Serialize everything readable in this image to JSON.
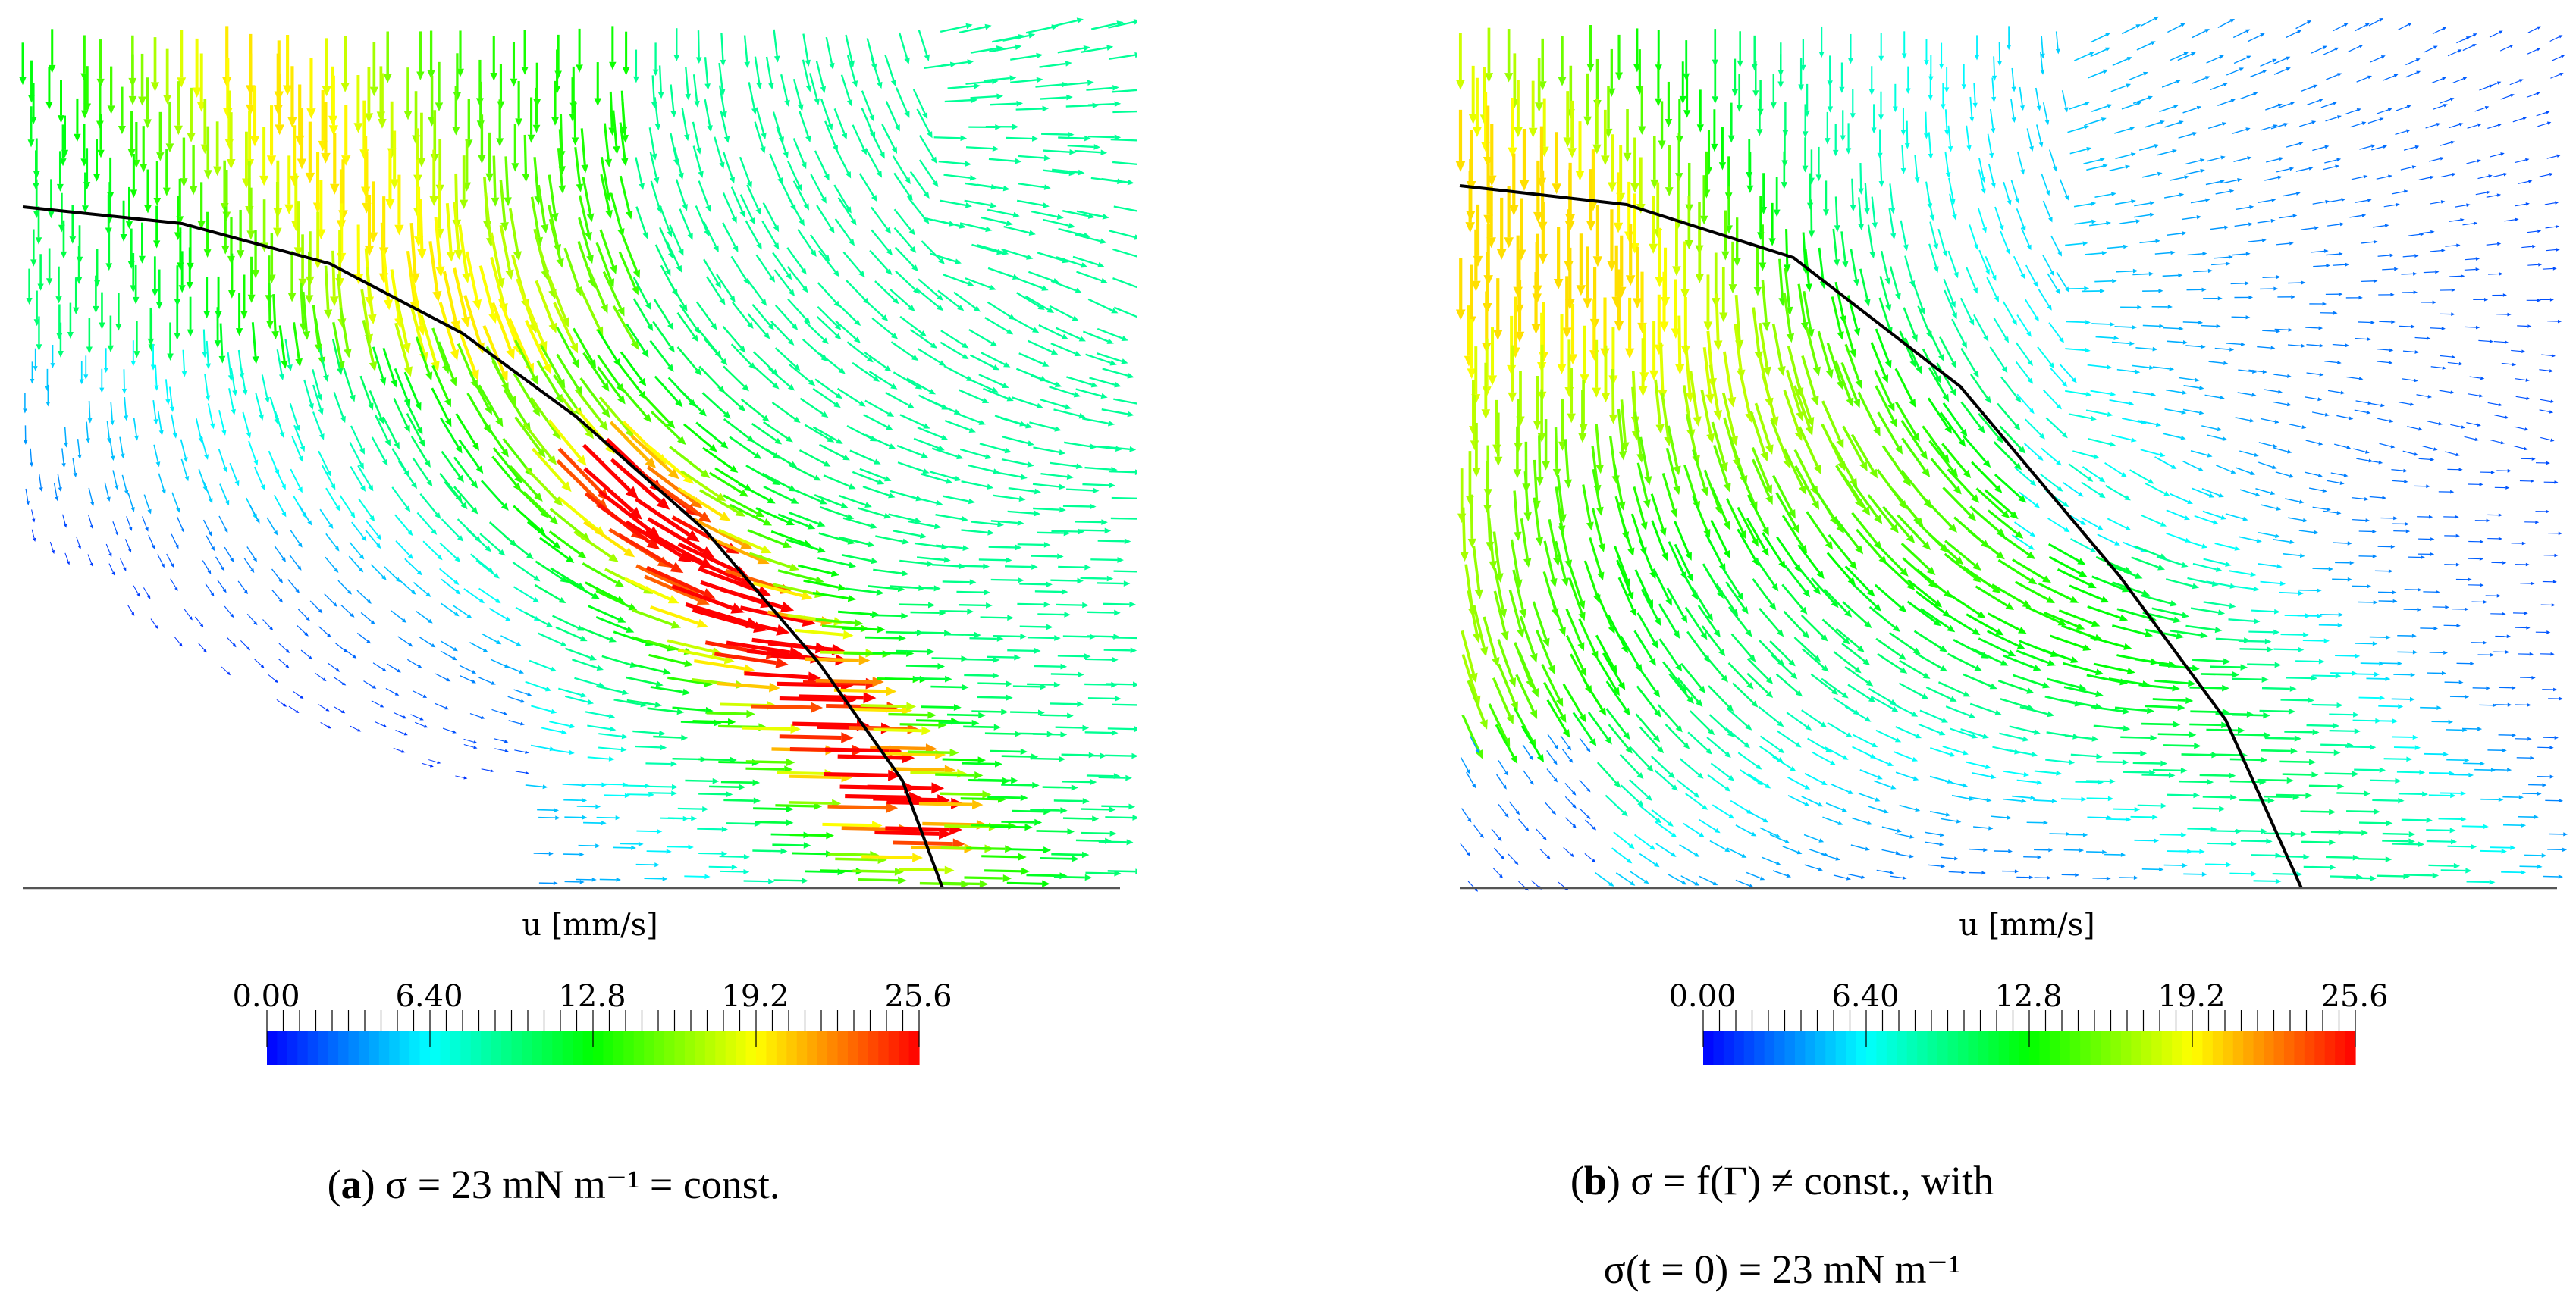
{
  "chart_data": [
    {
      "type": "quiver",
      "id": "a",
      "title": "(a) σ = 23 mN m⁻¹ = const.",
      "caption_label": "a",
      "caption_text": "σ = 23 mN m⁻¹ = const.",
      "colorbar": {
        "label": "u [mm/s]",
        "ticks": [
          "0.00",
          "6.40",
          "12.8",
          "19.2",
          "25.6"
        ],
        "range": [
          0,
          25.6
        ],
        "colormap": [
          "#0000ff",
          "#00ffff",
          "#00ff00",
          "#ffff00",
          "#ff0000"
        ]
      },
      "max_speed": 25.6,
      "interface_curve_color": "#000000"
    },
    {
      "type": "quiver",
      "id": "b",
      "caption_label": "b",
      "caption_text": "σ = f(Γ) ≠ const., with",
      "caption_line2": "σ(t = 0) = 23 mN m⁻¹",
      "colorbar": {
        "label": "u [mm/s]",
        "ticks": [
          "0.00",
          "6.40",
          "12.8",
          "19.2",
          "25.6"
        ],
        "range": [
          0,
          25.6
        ],
        "colormap": [
          "#0000ff",
          "#00ffff",
          "#00ff00",
          "#ffff00",
          "#ff0000"
        ]
      },
      "max_speed": 18,
      "interface_curve_color": "#000000"
    }
  ]
}
